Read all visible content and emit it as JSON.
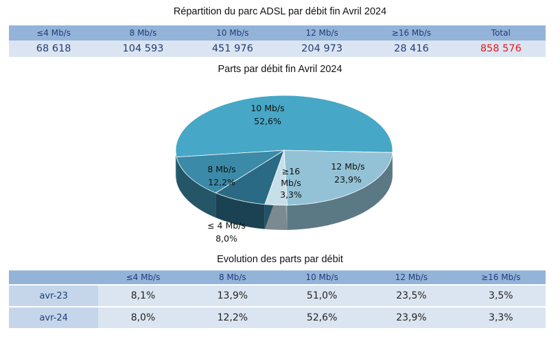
{
  "main_title": "Répartition du parc ADSL par débit fin Avril    2024",
  "top_table": {
    "headers": [
      "≤4 Mb/s",
      "8 Mb/s",
      "10 Mb/s",
      "12 Mb/s",
      "≥16 Mb/s",
      "Total"
    ],
    "values": [
      "68 618",
      "104 593",
      "451 976",
      "204 973",
      "28 416",
      "858 576"
    ]
  },
  "pie_title": "Parts par débit fin Avril    2024",
  "chart_data": {
    "type": "pie",
    "title": "Parts par débit fin Avril    2024",
    "slices": [
      {
        "label": "≤ 4 Mb/s",
        "value": 8.0,
        "display": "8,0%",
        "color": "#2a6a84"
      },
      {
        "label": "8 Mb/s",
        "value": 12.2,
        "display": "12,2%",
        "color": "#3a8aa8"
      },
      {
        "label": "10 Mb/s",
        "value": 52.6,
        "display": "52,6%",
        "color": "#47a7c6"
      },
      {
        "label": "12 Mb/s",
        "value": 23.9,
        "display": "23,9%",
        "color": "#93c2d6"
      },
      {
        "label": "≥16 Mb/s",
        "value": 3.3,
        "display": "3,3%",
        "color": "#c7dfe9"
      }
    ]
  },
  "evolution_title": "Evolution des parts par débit",
  "evolution_table": {
    "headers": [
      "",
      "≤4 Mb/s",
      "8 Mb/s",
      "10 Mb/s",
      "12 Mb/s",
      "≥16 Mb/s"
    ],
    "rows": [
      {
        "label": "avr-23",
        "values": [
          "8,1%",
          "13,9%",
          "51,0%",
          "23,5%",
          "3,5%"
        ]
      },
      {
        "label": "avr-24",
        "values": [
          "8,0%",
          "12,2%",
          "52,6%",
          "23,9%",
          "3,3%"
        ]
      }
    ]
  }
}
